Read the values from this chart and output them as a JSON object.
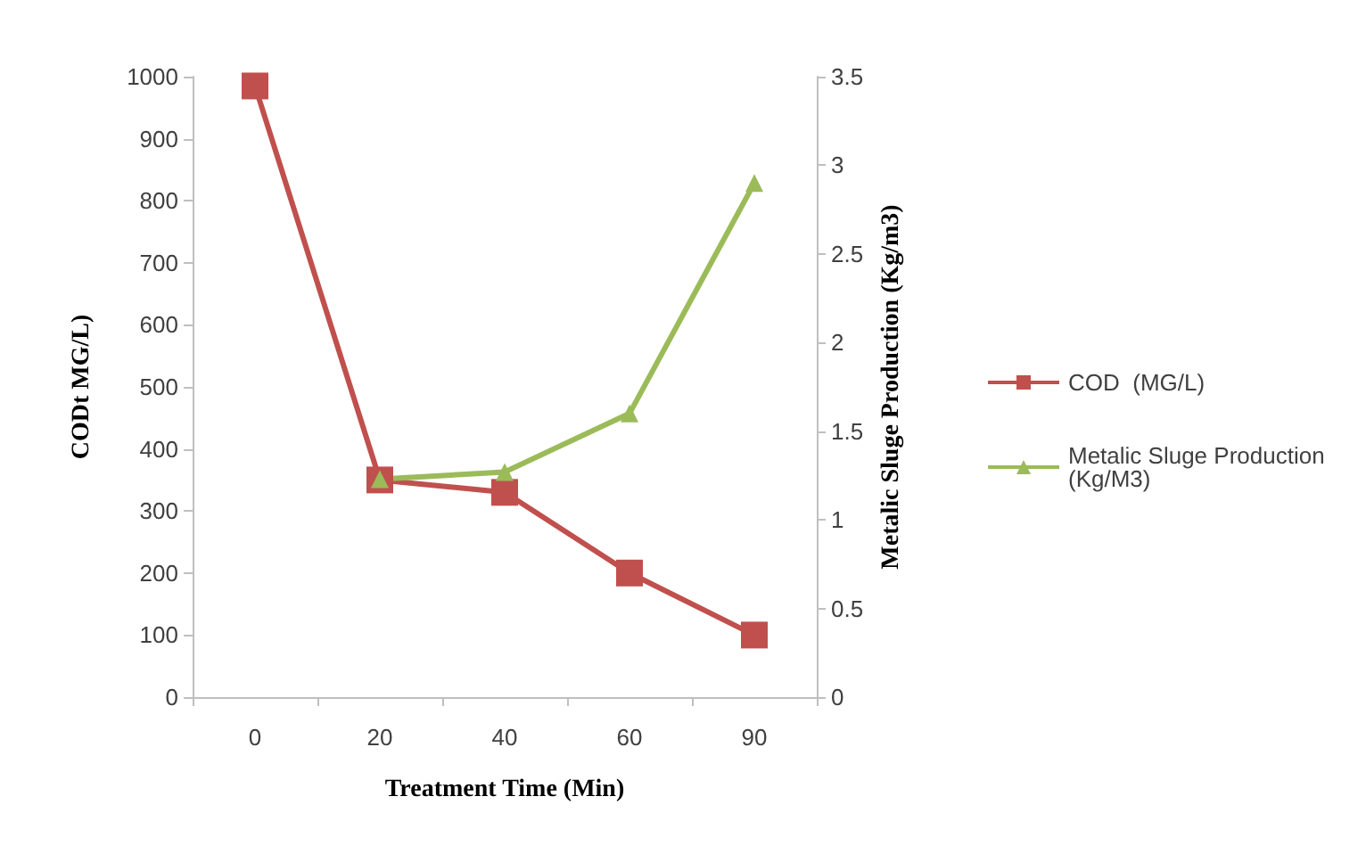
{
  "chart_data": {
    "type": "line",
    "xlabel": "Treatment Time (Min)",
    "ylabel": "CODt MG/L)",
    "y2label": "Metalic Sluge Production (Kg/m3)",
    "categories": [
      "0",
      "20",
      "40",
      "60",
      "90"
    ],
    "series": [
      {
        "name": "COD  (MG/L)",
        "color": "#c0504d",
        "marker": "square",
        "values": [
          985,
          350,
          330,
          200,
          100
        ]
      },
      {
        "name": "Metalic Sluge Production (Kg/M3)",
        "color": "#9bbb59",
        "marker": "triangle",
        "axis": "y2",
        "values": [
          null,
          1.23,
          1.27,
          1.6,
          2.9
        ]
      }
    ],
    "ylim": [
      0,
      1000
    ],
    "yticks": [
      0,
      100,
      200,
      300,
      400,
      500,
      600,
      700,
      800,
      900,
      1000
    ],
    "y2lim": [
      0,
      3.5
    ],
    "y2ticks": [
      0,
      0.5,
      1,
      1.5,
      2,
      2.5,
      3,
      3.5
    ],
    "grid": false,
    "legend": "right"
  }
}
